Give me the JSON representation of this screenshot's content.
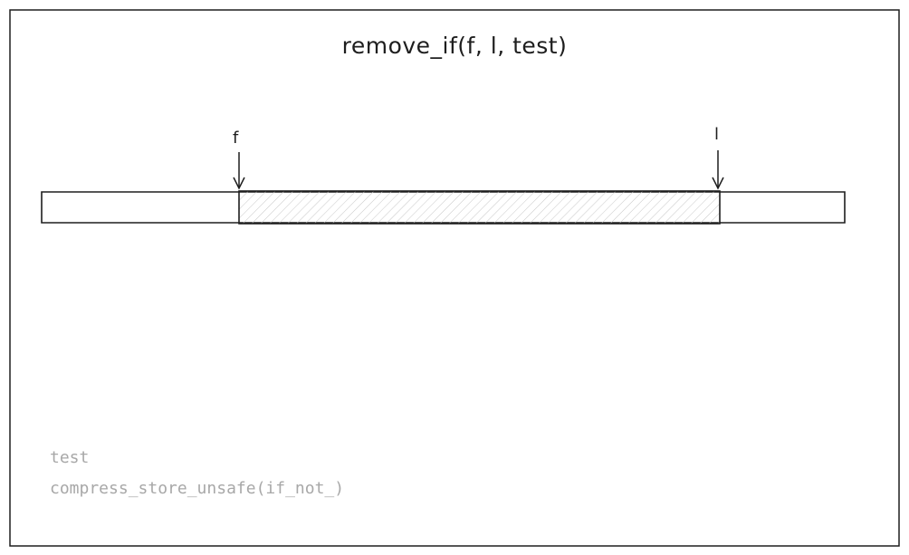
{
  "title": "remove_if(f, l, test)",
  "pointers": {
    "first": "f",
    "last": "l"
  },
  "code": {
    "line1": "test",
    "line2": "compress_store_unsafe(if_not_)"
  },
  "colors": {
    "stroke": "#1e1e1e",
    "code_text": "#a8a8a8",
    "hatch": "#c8c8c8"
  }
}
